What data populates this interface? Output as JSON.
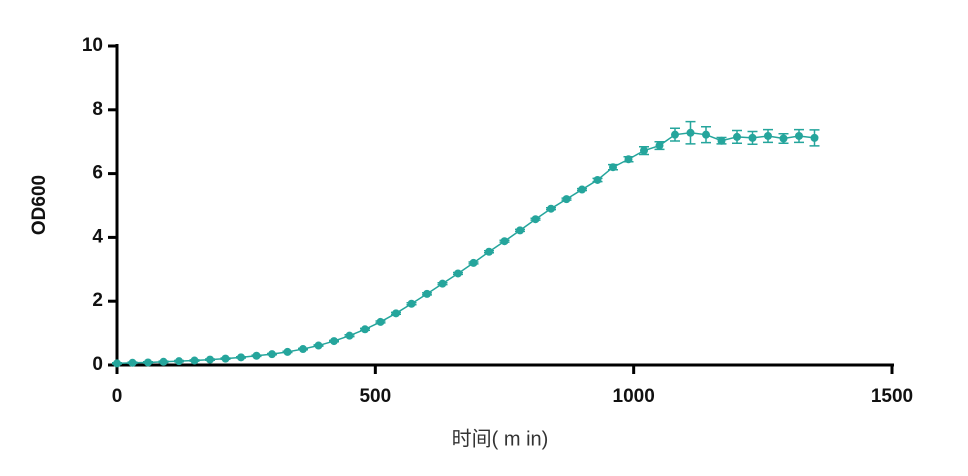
{
  "chart_data": {
    "type": "line",
    "x_label": "时间( m in)",
    "y_label": "OD600",
    "x": [
      0,
      30,
      60,
      90,
      120,
      150,
      180,
      210,
      240,
      270,
      300,
      330,
      360,
      390,
      420,
      450,
      480,
      510,
      540,
      570,
      600,
      630,
      660,
      690,
      720,
      750,
      780,
      810,
      840,
      870,
      900,
      930,
      960,
      990,
      1020,
      1050,
      1080,
      1110,
      1140,
      1170,
      1200,
      1230,
      1260,
      1290,
      1320,
      1350
    ],
    "values": [
      0.05,
      0.07,
      0.08,
      0.1,
      0.12,
      0.14,
      0.17,
      0.2,
      0.24,
      0.29,
      0.34,
      0.41,
      0.5,
      0.61,
      0.75,
      0.92,
      1.12,
      1.35,
      1.62,
      1.92,
      2.23,
      2.55,
      2.87,
      3.2,
      3.55,
      3.88,
      4.22,
      4.57,
      4.9,
      5.2,
      5.5,
      5.8,
      6.2,
      6.45,
      6.72,
      6.88,
      7.22,
      7.28,
      7.22,
      7.03,
      7.15,
      7.12,
      7.18,
      7.1,
      7.18,
      7.12
    ],
    "errors": [
      0.02,
      0.02,
      0.02,
      0.02,
      0.02,
      0.02,
      0.02,
      0.02,
      0.02,
      0.02,
      0.02,
      0.02,
      0.02,
      0.02,
      0.02,
      0.03,
      0.03,
      0.03,
      0.03,
      0.03,
      0.03,
      0.03,
      0.03,
      0.03,
      0.03,
      0.03,
      0.03,
      0.03,
      0.03,
      0.03,
      0.03,
      0.05,
      0.08,
      0.08,
      0.12,
      0.12,
      0.2,
      0.35,
      0.25,
      0.1,
      0.2,
      0.2,
      0.2,
      0.15,
      0.2,
      0.25
    ],
    "color": "#25a59c",
    "xlim": [
      0,
      1500
    ],
    "xticks": [
      0,
      500,
      1000,
      1500
    ],
    "ylim": [
      0,
      10
    ],
    "yticks": [
      0,
      2,
      4,
      6,
      8,
      10
    ]
  }
}
